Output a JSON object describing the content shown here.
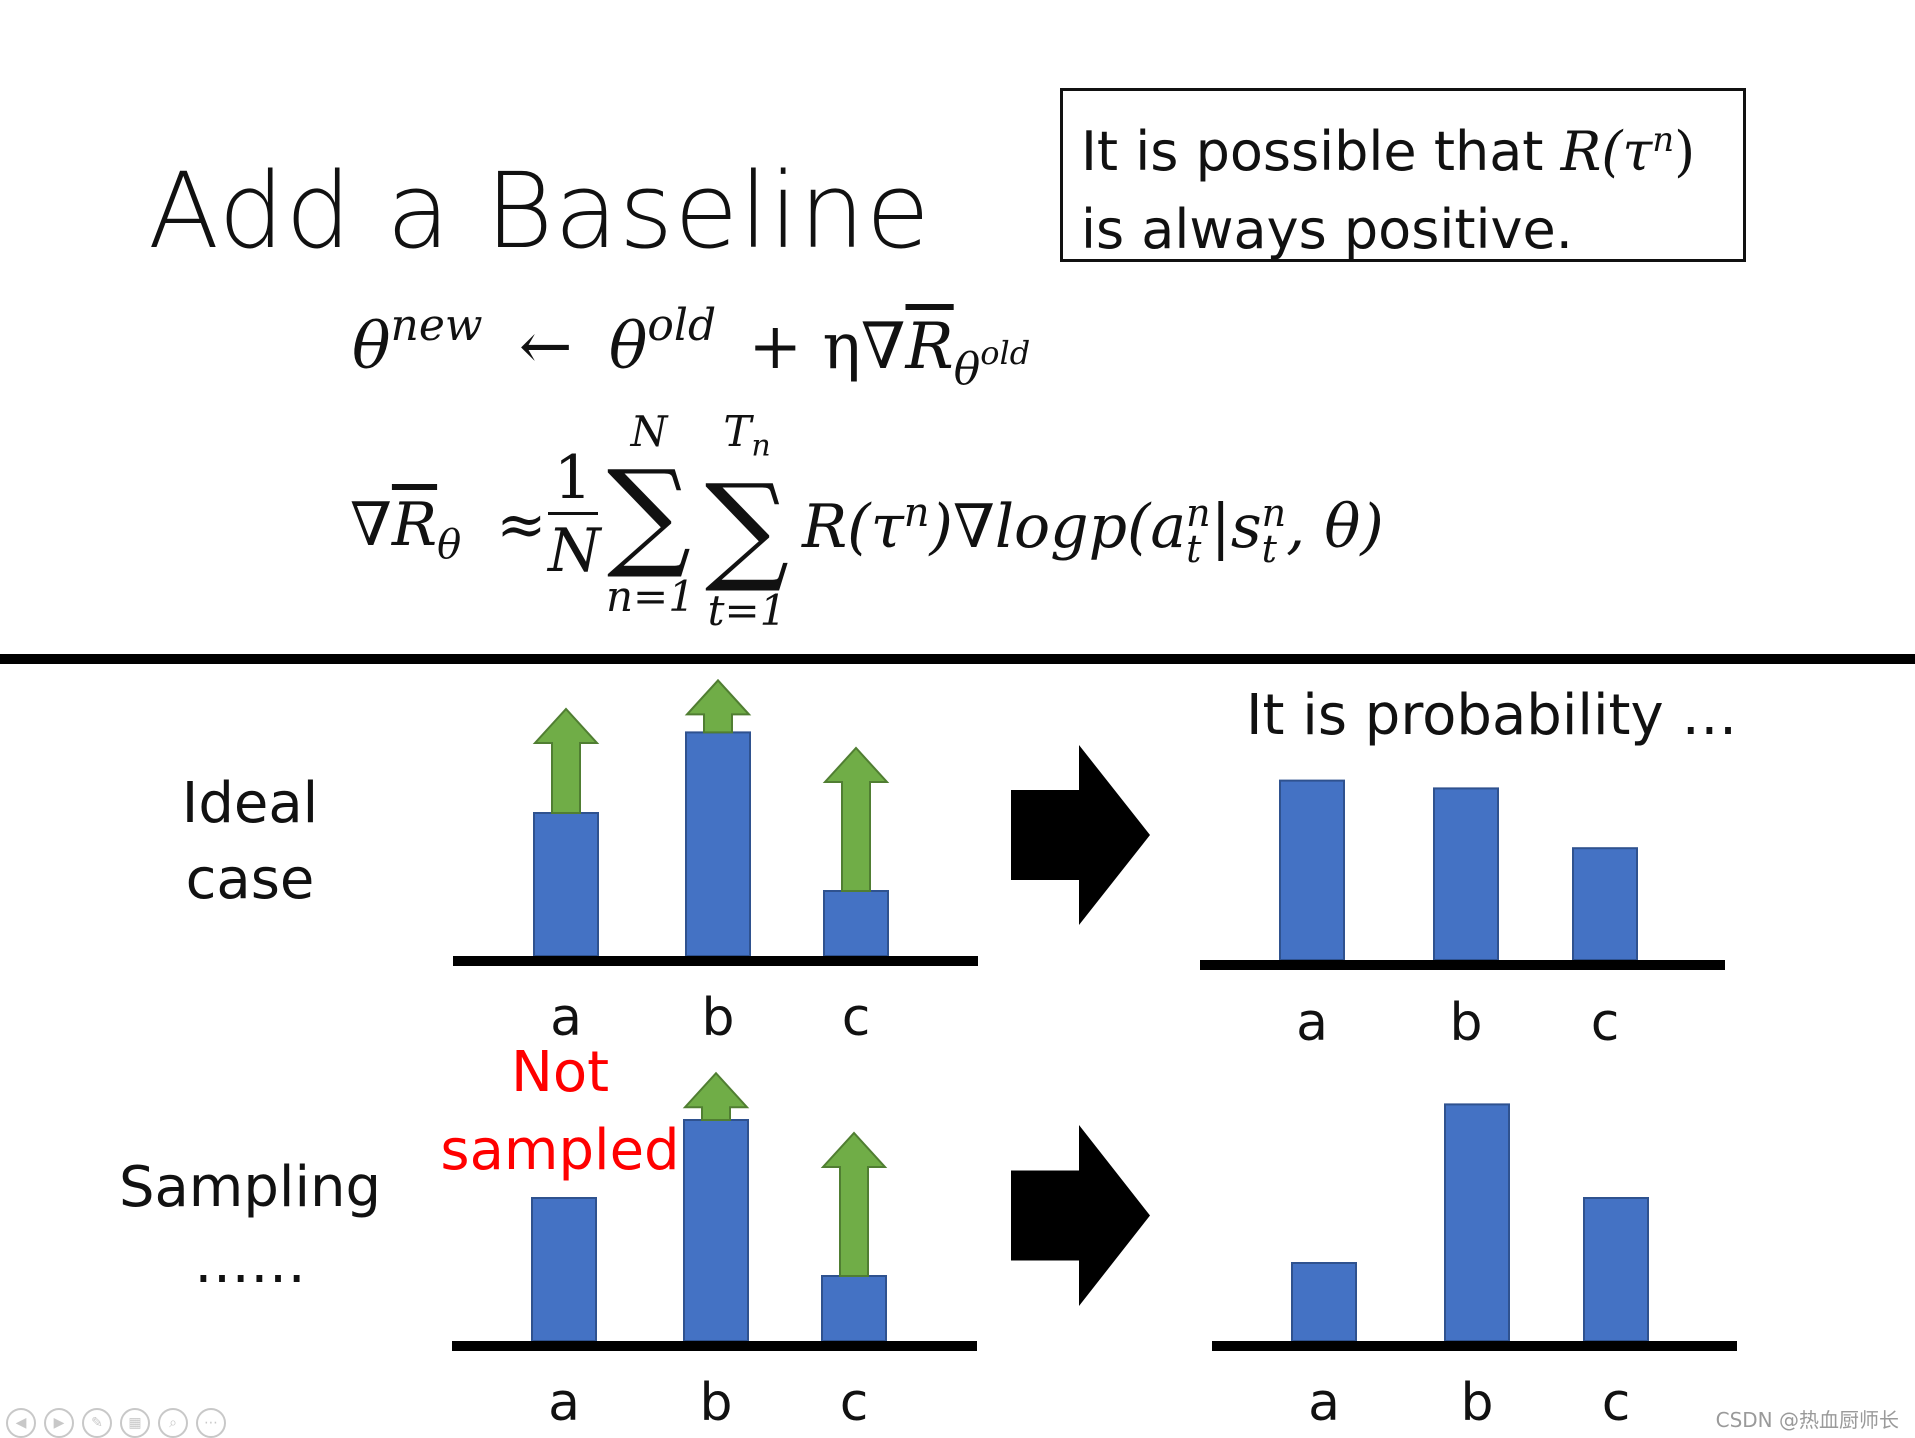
{
  "title": "Add a Baseline",
  "note": {
    "line1": "It is possible that",
    "line1_math": "R(τ",
    "line1_sup": "n",
    "line1_close": ")",
    "line2": "is always positive."
  },
  "equations": {
    "update": {
      "lhs": "θ",
      "lhs_sup": "new",
      "arrow": "←",
      "theta_old": "θ",
      "theta_old_sup": "old",
      "plus": "+ η∇",
      "rbar": "R",
      "sub_theta": "θ",
      "sub_old": "old"
    },
    "gradient": {
      "lhs": "∇",
      "rbar": "R",
      "sub": "θ",
      "approx": "≈",
      "frac_num": "1",
      "frac_den": "N",
      "sum1_top": "N",
      "sum1_bottom": "n=1",
      "sum2_top": "T",
      "sum2_top_sub": "n",
      "sum2_bottom": "t=1",
      "sigma": "∑",
      "term": "R(τ",
      "term_sup": "n",
      "term2": ")∇logp(a",
      "a_sup": "n",
      "a_sub": "t",
      "bar": "|s",
      "s_sup": "n",
      "s_sub": "t",
      "tail": ", θ)"
    }
  },
  "rows": {
    "ideal_label_1": "Ideal",
    "ideal_label_2": "case",
    "sampling_label_1": "Sampling",
    "sampling_label_2": "……"
  },
  "not_sampled_1": "Not",
  "not_sampled_2": "sampled",
  "probability_caption": "It is probability …",
  "colors": {
    "bar": "#4472c4",
    "bar_edge": "#2f528f",
    "arrow": "#70ad47",
    "arrow_edge": "#507e32",
    "axis": "#000000",
    "highlight": "#ff0000"
  },
  "panels": {
    "categories": [
      "a",
      "b",
      "c"
    ],
    "ideal_left": {
      "values": [
        0.55,
        0.86,
        0.25
      ],
      "arrows": [
        0.4,
        0.2,
        0.55
      ]
    },
    "ideal_right": {
      "values": [
        0.69,
        0.66,
        0.43
      ]
    },
    "sampling_left": {
      "values": [
        0.55,
        0.85,
        0.25
      ],
      "arrows": [
        0,
        0.18,
        0.55
      ]
    },
    "sampling_right": {
      "values": [
        0.3,
        0.91,
        0.55
      ]
    }
  },
  "watermark": "CSDN @热血厨师长",
  "toolbar_icons": [
    "prev-icon",
    "next-icon",
    "pen-icon",
    "slides-icon",
    "zoom-icon",
    "more-icon"
  ]
}
